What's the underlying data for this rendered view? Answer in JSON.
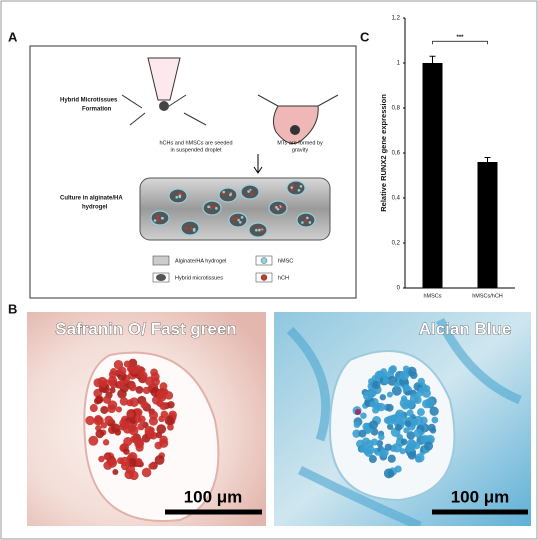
{
  "panel_labels": {
    "a": "A",
    "b": "B",
    "c": "C"
  },
  "diagram": {
    "title": [
      "Hybrid Microtissues",
      "Formation"
    ],
    "step1": [
      "hCHs and hMSCs are seeded",
      "in suspended droplet"
    ],
    "step2": [
      "MTs are formed by",
      "gravity"
    ],
    "culture": [
      "Culture in alginate/HA",
      "hydrogel"
    ],
    "legend": [
      "Alginate/HA hydrogel",
      "hMSC",
      "Hybrid microtissues",
      "hCH"
    ]
  },
  "micrographs": [
    {
      "title": "Safranin O/ Fast green",
      "scale": "100 μm"
    },
    {
      "title": "Alcian Blue",
      "scale": "100 μm"
    }
  ],
  "chart_data": {
    "type": "bar",
    "ylabel": "Relative RUNX2 gene expression",
    "categories": [
      "hMSCs",
      "hMSCs/hCH"
    ],
    "values": [
      1.0,
      0.56
    ],
    "errors": [
      0.03,
      0.02
    ],
    "color": "#000000",
    "annotation": "***",
    "ylim": [
      0,
      1.2
    ],
    "yticks": [
      0,
      {
        "value": 0.2,
        "label": "0,2"
      },
      {
        "value": 0.4,
        "label": "0,4"
      },
      {
        "value": 0.6,
        "label": "0,6"
      },
      {
        "value": 0.8,
        "label": "0,8"
      },
      1,
      {
        "value": 1.2,
        "label": "1,2"
      }
    ]
  }
}
